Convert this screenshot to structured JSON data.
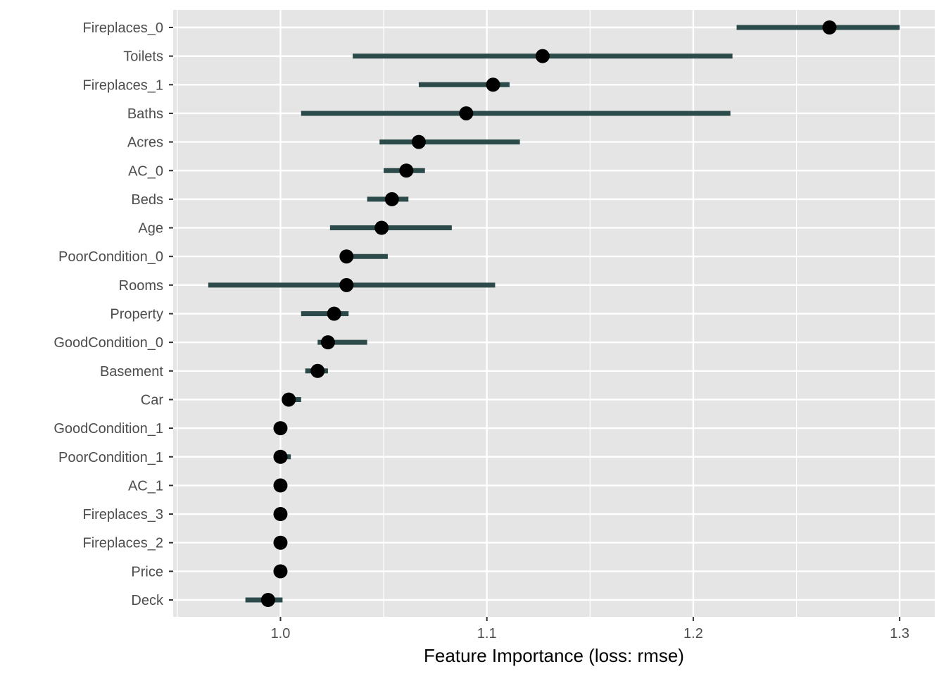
{
  "chart_data": {
    "type": "scatter",
    "subtype": "dot-with-interval",
    "title": "",
    "xlabel": "Feature Importance (loss: rmse)",
    "ylabel": "",
    "xlim": [
      0.948,
      1.317
    ],
    "xticks": [
      1.0,
      1.1,
      1.2,
      1.3
    ],
    "xtick_labels": [
      "1.0",
      "1.1",
      "1.2",
      "1.3"
    ],
    "grid": true,
    "legend": "none",
    "colors": {
      "panel": "#e5e5e5",
      "grid": "#ffffff",
      "interval": "#2d4a4a",
      "point": "#000000",
      "tick_text": "#4d4d4d"
    },
    "features": [
      {
        "label": "Fireplaces_0",
        "value": 1.266,
        "low": 1.221,
        "high": 1.3
      },
      {
        "label": "Toilets",
        "value": 1.127,
        "low": 1.035,
        "high": 1.219
      },
      {
        "label": "Fireplaces_1",
        "value": 1.103,
        "low": 1.067,
        "high": 1.111
      },
      {
        "label": "Baths",
        "value": 1.09,
        "low": 1.01,
        "high": 1.218
      },
      {
        "label": "Acres",
        "value": 1.067,
        "low": 1.048,
        "high": 1.116
      },
      {
        "label": "AC_0",
        "value": 1.061,
        "low": 1.05,
        "high": 1.07
      },
      {
        "label": "Beds",
        "value": 1.054,
        "low": 1.042,
        "high": 1.062
      },
      {
        "label": "Age",
        "value": 1.049,
        "low": 1.024,
        "high": 1.083
      },
      {
        "label": "PoorCondition_0",
        "value": 1.032,
        "low": 1.032,
        "high": 1.052
      },
      {
        "label": "Rooms",
        "value": 1.032,
        "low": 0.965,
        "high": 1.104
      },
      {
        "label": "Property",
        "value": 1.026,
        "low": 1.01,
        "high": 1.033
      },
      {
        "label": "GoodCondition_0",
        "value": 1.023,
        "low": 1.018,
        "high": 1.042
      },
      {
        "label": "Basement",
        "value": 1.018,
        "low": 1.012,
        "high": 1.023
      },
      {
        "label": "Car",
        "value": 1.004,
        "low": 1.004,
        "high": 1.01
      },
      {
        "label": "GoodCondition_1",
        "value": 1.0,
        "low": 1.0,
        "high": 1.0
      },
      {
        "label": "PoorCondition_1",
        "value": 1.0,
        "low": 1.0,
        "high": 1.005
      },
      {
        "label": "AC_1",
        "value": 1.0,
        "low": 1.0,
        "high": 1.0
      },
      {
        "label": "Fireplaces_3",
        "value": 1.0,
        "low": 1.0,
        "high": 1.0
      },
      {
        "label": "Fireplaces_2",
        "value": 1.0,
        "low": 1.0,
        "high": 1.0
      },
      {
        "label": "Price",
        "value": 1.0,
        "low": 1.0,
        "high": 1.0
      },
      {
        "label": "Deck",
        "value": 0.994,
        "low": 0.983,
        "high": 1.001
      }
    ]
  }
}
